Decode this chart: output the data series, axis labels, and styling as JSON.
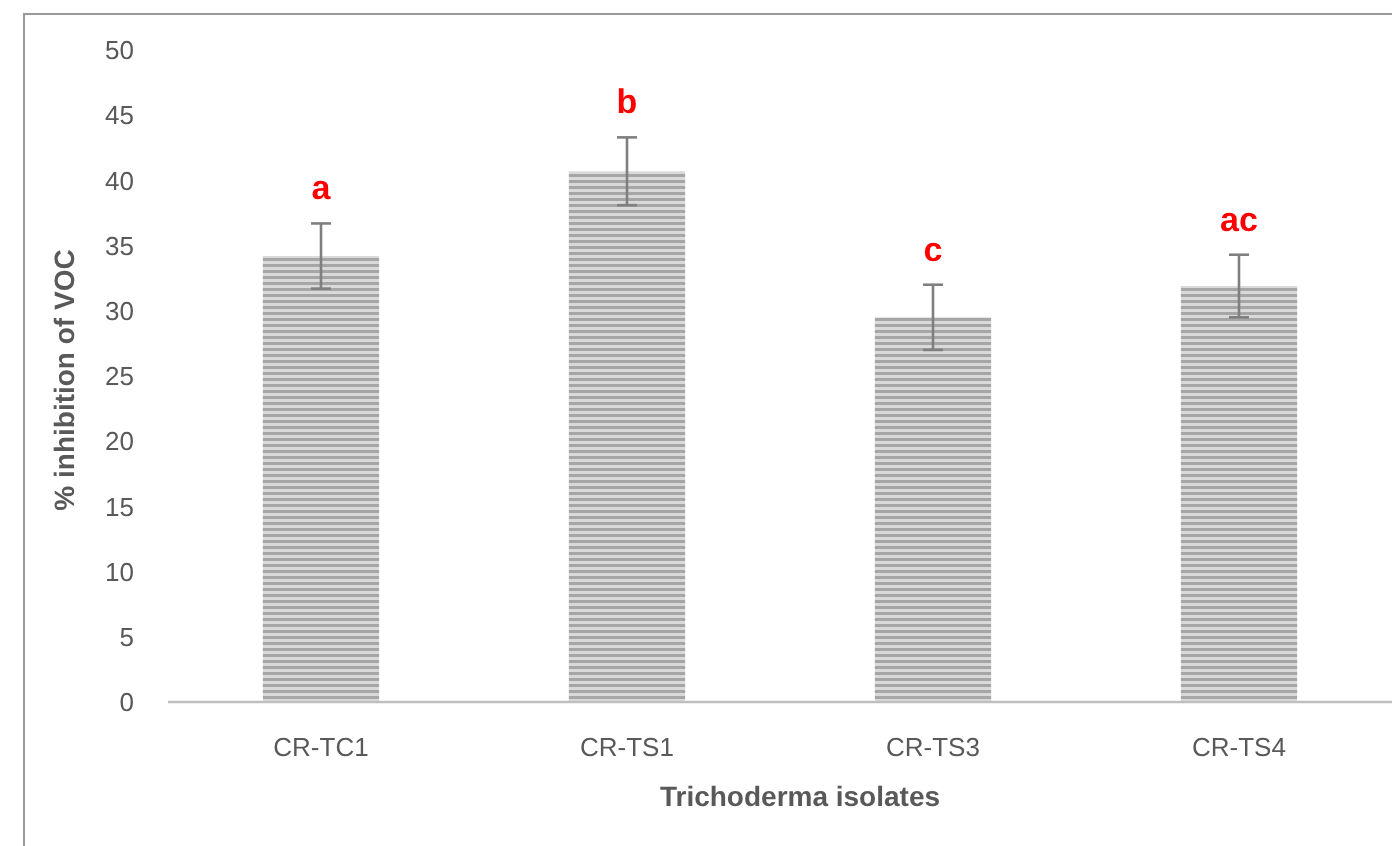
{
  "chart_data": {
    "type": "bar",
    "xlabel": "Trichoderma isolates",
    "ylabel": "% inhibition of VOC",
    "categories": [
      "CR-TC1",
      "CR-TS1",
      "CR-TS3",
      "CR-TS4"
    ],
    "values": [
      34.2,
      40.7,
      29.5,
      31.9
    ],
    "errors": [
      2.5,
      2.6,
      2.5,
      2.4
    ],
    "color": "#a6a6a6",
    "ylim": [
      0,
      50
    ],
    "yticks": [
      0,
      5,
      10,
      15,
      20,
      25,
      30,
      35,
      40,
      45,
      50
    ],
    "grid": false,
    "annotations": [
      "a",
      "b",
      "c",
      "ac"
    ]
  }
}
